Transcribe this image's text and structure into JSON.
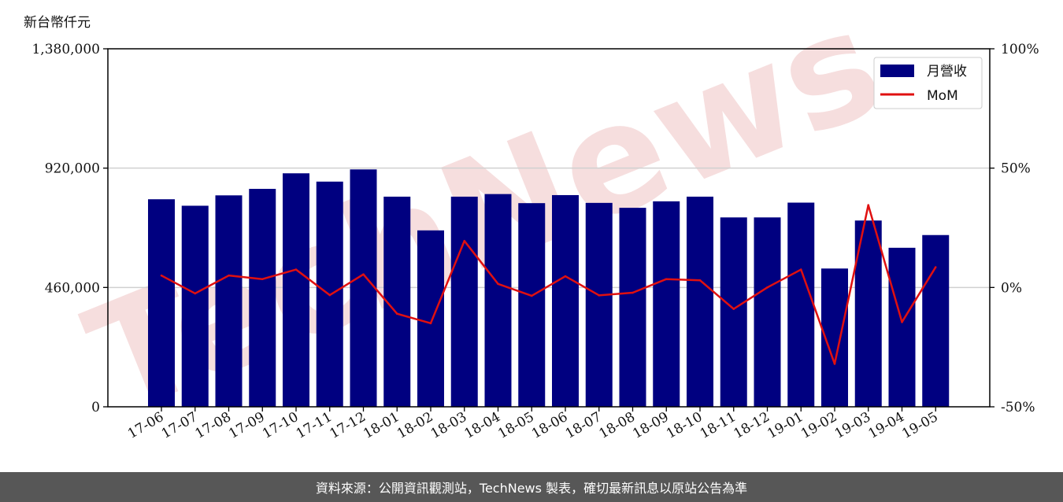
{
  "unit_label": "新台幣仟元",
  "footer": "資料來源：公開資訊觀測站，TechNews 製表，確切最新訊息以原站公告為準",
  "watermark": "TechNews",
  "colors": {
    "bar": "#000080",
    "line": "#e01010",
    "grid": "#d0d0d0",
    "footer_bg": "#575757",
    "watermark": "#f3d3d3"
  },
  "chart_data": {
    "type": "bar",
    "categories": [
      "17-06",
      "17-07",
      "17-08",
      "17-09",
      "17-10",
      "17-11",
      "17-12",
      "18-01",
      "18-02",
      "18-03",
      "18-04",
      "18-05",
      "18-06",
      "18-07",
      "18-08",
      "18-09",
      "18-10",
      "18-11",
      "18-12",
      "19-01",
      "19-02",
      "19-03",
      "19-04",
      "19-05"
    ],
    "series": [
      {
        "name": "月營收",
        "type": "bar",
        "axis": "left",
        "values": [
          800000,
          775000,
          815000,
          840000,
          900000,
          868000,
          915000,
          810000,
          680000,
          810000,
          820000,
          785000,
          816000,
          786000,
          767000,
          792000,
          810000,
          730000,
          730000,
          787000,
          533000,
          718000,
          613000,
          662000
        ]
      },
      {
        "name": "MoM",
        "type": "line",
        "axis": "right",
        "values": [
          5,
          -2.5,
          5,
          3.5,
          7.5,
          -3.2,
          5.5,
          -11,
          -15,
          19.5,
          1.5,
          -3.5,
          4.7,
          -3.3,
          -2.2,
          3.5,
          3,
          -9,
          0,
          7.5,
          -32,
          34.5,
          -14.5,
          8.5
        ]
      }
    ],
    "y_left": {
      "min": 0,
      "max": 1380000,
      "ticks": [
        "0",
        "460,000",
        "920,000",
        "1,380,000"
      ]
    },
    "y_right": {
      "min": -50,
      "max": 100,
      "ticks": [
        "-50%",
        "0%",
        "50%",
        "100%"
      ]
    },
    "grid": "horizontal",
    "legend": "top-right"
  }
}
